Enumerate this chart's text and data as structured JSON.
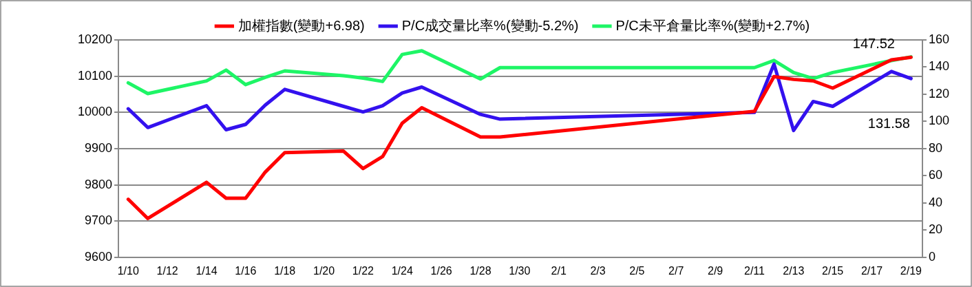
{
  "chart_data": {
    "type": "line",
    "x": [
      "--01-10",
      "--01-11",
      "--01-14",
      "--01-15",
      "--01-16",
      "--01-17",
      "--01-18",
      "--01-21",
      "--01-22",
      "--01-23",
      "--01-24",
      "--01-25",
      "--01-28",
      "--01-29",
      "--02-11",
      "--02-12",
      "--02-13",
      "--02-14",
      "--02-15",
      "--02-18",
      "--02-19"
    ],
    "series": [
      {
        "name": "加權指數(變動+6.98)",
        "color": "#ff0000",
        "values": [
          9760,
          9707,
          9807,
          9763,
          9763,
          9835,
          9889,
          9893,
          9845,
          9878,
          9970,
          10013,
          9932,
          9932,
          10003,
          10099,
          10091,
          10087,
          10067,
          10145,
          10152
        ]
      },
      {
        "name": "P/C成交量比率%(變動-5.2%)",
        "color": "#3311ee",
        "axis": "y2",
        "values": [
          109.3,
          95.5,
          111.6,
          93.9,
          97.8,
          112,
          123.6,
          111.1,
          107,
          111.6,
          120.9,
          125.3,
          105.2,
          101.7,
          106.7,
          142.2,
          93.3,
          114.7,
          111.1,
          136.8,
          131.58
        ]
      },
      {
        "name": "P/C未平倉量比率%(變動+2.7%)",
        "color": "#1ef566",
        "axis": "y2",
        "values": [
          128.4,
          120.5,
          129.8,
          137.8,
          127.1,
          132.4,
          137.2,
          133.7,
          131.9,
          129.4,
          149.3,
          152,
          131.2,
          139.6,
          139.6,
          144.9,
          136,
          131.6,
          136,
          144.8,
          147.52
        ]
      }
    ],
    "xlim": [
      "--01-09T12:00",
      "--02-19T14:00"
    ],
    "xticks": [
      {
        "value": "--01-10",
        "label": "1/10"
      },
      {
        "value": "--01-12",
        "label": "1/12"
      },
      {
        "value": "--01-14",
        "label": "1/14"
      },
      {
        "value": "--01-16",
        "label": "1/16"
      },
      {
        "value": "--01-18",
        "label": "1/18"
      },
      {
        "value": "--01-20",
        "label": "1/20"
      },
      {
        "value": "--01-22",
        "label": "1/22"
      },
      {
        "value": "--01-24",
        "label": "1/24"
      },
      {
        "value": "--01-26",
        "label": "1/26"
      },
      {
        "value": "--01-28",
        "label": "1/28"
      },
      {
        "value": "--01-30",
        "label": "1/30"
      },
      {
        "value": "--02-01",
        "label": "2/1"
      },
      {
        "value": "--02-03",
        "label": "2/3"
      },
      {
        "value": "--02-05",
        "label": "2/5"
      },
      {
        "value": "--02-07",
        "label": "2/7"
      },
      {
        "value": "--02-09",
        "label": "2/9"
      },
      {
        "value": "--02-11",
        "label": "2/11"
      },
      {
        "value": "--02-13",
        "label": "2/13"
      },
      {
        "value": "--02-15",
        "label": "2/15"
      },
      {
        "value": "--02-17",
        "label": "2/17"
      },
      {
        "value": "--02-19",
        "label": "2/19"
      }
    ],
    "ylim": [
      9600,
      10200
    ],
    "yticks": [
      9600,
      9700,
      9800,
      9900,
      10000,
      10100,
      10200
    ],
    "y2lim": [
      0,
      160
    ],
    "y2ticks": [
      0,
      20,
      40,
      60,
      80,
      100,
      120,
      140,
      160
    ],
    "annotations": [
      "147.52",
      "131.58"
    ],
    "grid": "y",
    "legend": "top",
    "line_style": "solid"
  }
}
